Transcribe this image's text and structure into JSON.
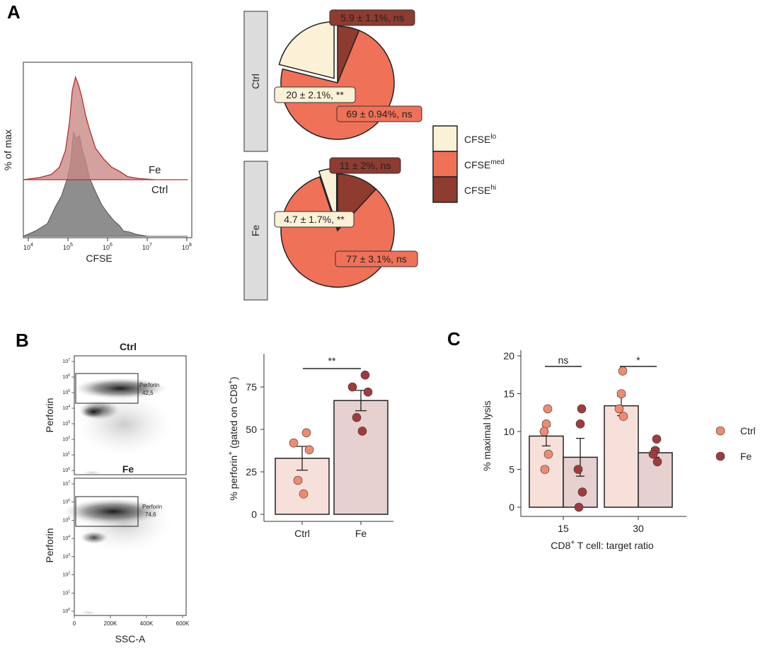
{
  "panel_letters": {
    "a": "A",
    "b": "B",
    "c": "C"
  },
  "colors": {
    "fe_line": "#b5302c",
    "fe_fill": "#c98a86",
    "ctrl_fill": "#8e8e8e",
    "ctrl_label": "#9a9a9a",
    "lo": "#fbf1d6",
    "med": "#ef7158",
    "hi": "#8e3b30",
    "bar_ctrl": "#f8e0da",
    "bar_fe": "#e6d0d0",
    "dot_ctrl": "#ef8a70",
    "dot_fe": "#a23a3d",
    "strip": "#dcdcdc"
  },
  "chart_data": [
    {
      "type": "area",
      "id": "histogram",
      "xlabel": "CFSE",
      "ylabel": "% of max",
      "x_tick_exponents": [
        "4",
        "5",
        "6",
        "7",
        "8"
      ],
      "x_tick_base": "10",
      "series": [
        {
          "name": "Fe",
          "label": "Fe",
          "x": [
            3.9,
            4.3,
            4.6,
            4.8,
            4.95,
            5.05,
            5.12,
            5.2,
            5.28,
            5.35,
            5.45,
            5.55,
            5.7,
            5.9,
            6.1,
            6.3,
            6.5,
            6.8,
            7.2,
            8.0
          ],
          "y": [
            0.0,
            0.02,
            0.05,
            0.12,
            0.28,
            0.55,
            0.85,
            0.98,
            0.9,
            0.8,
            0.62,
            0.48,
            0.3,
            0.2,
            0.12,
            0.08,
            0.03,
            0.01,
            0.0,
            0.0
          ]
        },
        {
          "name": "Ctrl",
          "label": "Ctrl",
          "x": [
            3.9,
            4.2,
            4.5,
            4.7,
            4.85,
            5.0,
            5.08,
            5.15,
            5.22,
            5.3,
            5.38,
            5.45,
            5.55,
            5.7,
            5.85,
            6.0,
            6.15,
            6.3,
            6.4,
            6.55,
            6.7,
            7.0,
            8.0
          ],
          "y": [
            0.0,
            0.05,
            0.12,
            0.28,
            0.38,
            0.55,
            0.7,
            0.98,
            0.92,
            0.95,
            0.8,
            0.72,
            0.55,
            0.42,
            0.3,
            0.22,
            0.15,
            0.1,
            0.05,
            0.04,
            0.02,
            0.0,
            0.0
          ]
        }
      ]
    },
    {
      "type": "pie",
      "id": "pies",
      "facets": [
        {
          "facet": "Ctrl",
          "slices": [
            {
              "name": "CFSE hi",
              "value": 5.9,
              "label": "5.9 ± 1.1%, ns"
            },
            {
              "name": "CFSE med",
              "value": 69,
              "label": "69 ± 0.94%, ns"
            },
            {
              "name": "CFSE lo",
              "value": 20,
              "label": "20 ± 2.1%, **"
            }
          ]
        },
        {
          "facet": "Fe",
          "slices": [
            {
              "name": "CFSE hi",
              "value": 11,
              "label": "11 ± 2%, ns"
            },
            {
              "name": "CFSE med",
              "value": 77,
              "label": "77 ± 3.1%, ns"
            },
            {
              "name": "CFSE lo",
              "value": 4.7,
              "label": "4.7 ± 1.7%, **"
            }
          ]
        }
      ],
      "legend": [
        {
          "base": "CFSE",
          "sup": "lo",
          "color_key": "lo"
        },
        {
          "base": "CFSE",
          "sup": "med",
          "color_key": "med"
        },
        {
          "base": "CFSE",
          "sup": "hi",
          "color_key": "hi"
        }
      ]
    },
    {
      "type": "scatter",
      "id": "flow",
      "plots": [
        {
          "title": "Ctrl",
          "gate_label": "Perforin",
          "gate_value": "42,5"
        },
        {
          "title": "Fe",
          "gate_label": "Perforin",
          "gate_value": "74,6"
        }
      ],
      "ylabel": "Perforin",
      "xlabel": "SSC-A",
      "x_ticks": [
        "0",
        "200K",
        "400K",
        "600K"
      ],
      "y_tick_base": "10",
      "y_tick_exponents": [
        "0",
        "1",
        "2",
        "3",
        "4",
        "5",
        "6",
        "7"
      ]
    },
    {
      "type": "bar",
      "id": "perforin",
      "categories": [
        "Ctrl",
        "Fe"
      ],
      "values": [
        33,
        67
      ],
      "errors": [
        7,
        6
      ],
      "points": [
        [
          48,
          42,
          38,
          20,
          12
        ],
        [
          82,
          75,
          72,
          57,
          49
        ]
      ],
      "ylabel_main": "% perforin",
      "ylabel_sup": "+",
      "ylabel_mid": " (gated on CD8",
      "ylabel_sup2": "+",
      "ylabel_end": ")",
      "ylim": [
        0,
        90
      ],
      "yticks": [
        "0",
        "25",
        "50",
        "75"
      ],
      "significance": "**"
    },
    {
      "type": "bar",
      "id": "lysis",
      "categories": [
        "15",
        "30"
      ],
      "series": [
        {
          "name": "Ctrl",
          "values": [
            9.4,
            13.4
          ],
          "errors": [
            1.3,
            1.3
          ],
          "points": [
            [
              13,
              11,
              10,
              7,
              5
            ],
            [
              18,
              15,
              13,
              12
            ]
          ]
        },
        {
          "name": "Fe",
          "values": [
            6.6,
            7.2
          ],
          "errors": [
            2.5,
            0.6
          ],
          "points": [
            [
              13,
              11,
              5,
              2,
              0
            ],
            [
              9,
              7.5,
              7,
              6
            ]
          ]
        }
      ],
      "ylabel": "% maximal lysis",
      "xlabel_pre": "CD8",
      "xlabel_sup": "+",
      "xlabel_post": " T cell: target ratio",
      "ylim": [
        0,
        20
      ],
      "yticks": [
        "0",
        "5",
        "10",
        "15",
        "20"
      ],
      "significance": [
        "ns",
        "*"
      ],
      "legend": [
        "Ctrl",
        "Fe"
      ]
    }
  ]
}
